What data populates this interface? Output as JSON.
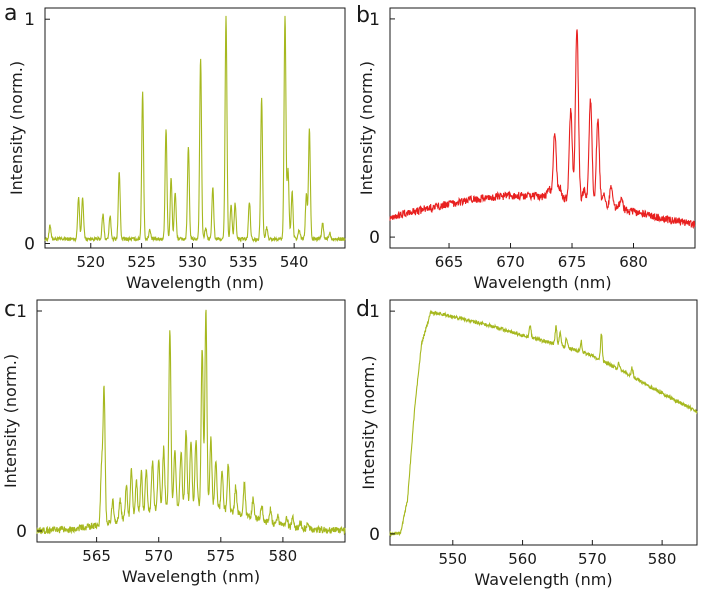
{
  "chart_data": [
    {
      "panel": "a",
      "type": "line",
      "xlabel": "Wavelength (nm)",
      "ylabel": "Intensity (norm.)",
      "xlim": [
        515.5,
        545
      ],
      "ylim": [
        -0.02,
        1.05
      ],
      "xticks": [
        520,
        525,
        530,
        535,
        540
      ],
      "yticks": [
        0,
        1
      ],
      "color": "#a6b81f",
      "baseline": 0.02,
      "noise": 0.008,
      "peaks": [
        [
          516.0,
          0.06
        ],
        [
          518.8,
          0.19
        ],
        [
          519.2,
          0.19
        ],
        [
          521.2,
          0.11
        ],
        [
          521.9,
          0.1
        ],
        [
          522.8,
          0.3
        ],
        [
          525.1,
          0.66
        ],
        [
          525.8,
          0.04
        ],
        [
          527.4,
          0.49
        ],
        [
          527.9,
          0.27
        ],
        [
          528.3,
          0.21
        ],
        [
          529.6,
          0.41
        ],
        [
          530.8,
          0.81
        ],
        [
          531.3,
          0.05
        ],
        [
          532.0,
          0.23
        ],
        [
          533.3,
          0.99
        ],
        [
          533.8,
          0.15
        ],
        [
          534.2,
          0.16
        ],
        [
          535.6,
          0.17
        ],
        [
          536.8,
          0.63
        ],
        [
          537.3,
          0.05
        ],
        [
          539.1,
          1.0
        ],
        [
          539.4,
          0.31
        ],
        [
          539.8,
          0.21
        ],
        [
          540.5,
          0.04
        ],
        [
          541.2,
          0.2
        ],
        [
          541.5,
          0.49
        ],
        [
          542.8,
          0.07
        ],
        [
          543.5,
          0.03
        ]
      ],
      "width": 0.09
    },
    {
      "panel": "b",
      "type": "line",
      "xlabel": "Wavelength (nm)",
      "ylabel": "Intensity (norm.)",
      "xlim": [
        660.2,
        685
      ],
      "ylim": [
        -0.05,
        1.05
      ],
      "xticks": [
        665,
        670,
        675,
        680
      ],
      "yticks": [
        0,
        1
      ],
      "color": "#e8201f",
      "envelope": {
        "center": 671,
        "height": 0.19,
        "sigma": 9,
        "offset": 0.0
      },
      "noise": 0.018,
      "peaks": [
        [
          673.1,
          0.04
        ],
        [
          673.6,
          0.3
        ],
        [
          674.0,
          0.05
        ],
        [
          674.9,
          0.41
        ],
        [
          675.4,
          0.79
        ],
        [
          676.0,
          0.05
        ],
        [
          676.5,
          0.47
        ],
        [
          677.1,
          0.38
        ],
        [
          677.6,
          0.04
        ],
        [
          678.2,
          0.1
        ],
        [
          679.0,
          0.05
        ]
      ],
      "width": 0.12
    },
    {
      "panel": "c",
      "type": "line",
      "xlabel": "Wavelength (nm)",
      "ylabel": "Intensity (norm.)",
      "xlim": [
        560.2,
        585
      ],
      "ylim": [
        -0.05,
        1.05
      ],
      "xticks": [
        565,
        570,
        575,
        580
      ],
      "yticks": [
        0,
        1
      ],
      "color": "#a6b81f",
      "envelope": {
        "center": 572.5,
        "height": 0.12,
        "sigma": 4.2,
        "offset": 0.0
      },
      "noise": 0.015,
      "peaks": [
        [
          565.4,
          0.27
        ],
        [
          565.6,
          0.62
        ],
        [
          566.3,
          0.1
        ],
        [
          566.9,
          0.09
        ],
        [
          567.4,
          0.15
        ],
        [
          567.8,
          0.21
        ],
        [
          568.2,
          0.16
        ],
        [
          568.6,
          0.19
        ],
        [
          569.0,
          0.2
        ],
        [
          569.5,
          0.22
        ],
        [
          570.0,
          0.23
        ],
        [
          570.4,
          0.27
        ],
        [
          570.9,
          0.8
        ],
        [
          571.3,
          0.25
        ],
        [
          571.8,
          0.25
        ],
        [
          572.2,
          0.34
        ],
        [
          572.6,
          0.3
        ],
        [
          573.0,
          0.29
        ],
        [
          573.5,
          0.72
        ],
        [
          573.8,
          0.89
        ],
        [
          574.2,
          0.31
        ],
        [
          574.6,
          0.22
        ],
        [
          575.1,
          0.18
        ],
        [
          575.6,
          0.21
        ],
        [
          576.2,
          0.12
        ],
        [
          576.9,
          0.15
        ],
        [
          577.6,
          0.09
        ],
        [
          578.3,
          0.07
        ],
        [
          579.0,
          0.06
        ],
        [
          579.6,
          0.04
        ],
        [
          580.3,
          0.04
        ],
        [
          580.8,
          0.04
        ],
        [
          581.4,
          0.03
        ],
        [
          582.0,
          0.02
        ]
      ],
      "width": 0.08
    },
    {
      "panel": "d",
      "type": "line",
      "xlabel": "Wavelength (nm)",
      "ylabel": "Intensity (norm.)",
      "xlim": [
        541,
        585
      ],
      "ylim": [
        -0.05,
        1.05
      ],
      "xticks": [
        550,
        560,
        570,
        580
      ],
      "yticks": [
        0,
        1
      ],
      "color": "#a6b81f",
      "edge": {
        "start": 542.5,
        "knee": 545,
        "top": 546.8
      },
      "curve": [
        [
          541,
          0
        ],
        [
          542.5,
          0.005
        ],
        [
          543.5,
          0.15
        ],
        [
          544.5,
          0.55
        ],
        [
          545.5,
          0.85
        ],
        [
          546.8,
          0.99
        ],
        [
          548,
          0.99
        ],
        [
          552,
          0.96
        ],
        [
          556,
          0.93
        ],
        [
          560,
          0.89
        ],
        [
          565,
          0.85
        ],
        [
          570,
          0.8
        ],
        [
          575,
          0.72
        ],
        [
          580,
          0.63
        ],
        [
          585,
          0.55
        ]
      ],
      "noise": 0.008,
      "peaks": [
        [
          561.1,
          0.06
        ],
        [
          564.8,
          0.08
        ],
        [
          565.4,
          0.06
        ],
        [
          566.3,
          0.04
        ],
        [
          568.4,
          0.05
        ],
        [
          571.3,
          0.12
        ],
        [
          573.8,
          0.03
        ],
        [
          575.7,
          0.04
        ]
      ],
      "width": 0.12
    }
  ],
  "panel_labels": [
    "a",
    "b",
    "c",
    "d"
  ]
}
